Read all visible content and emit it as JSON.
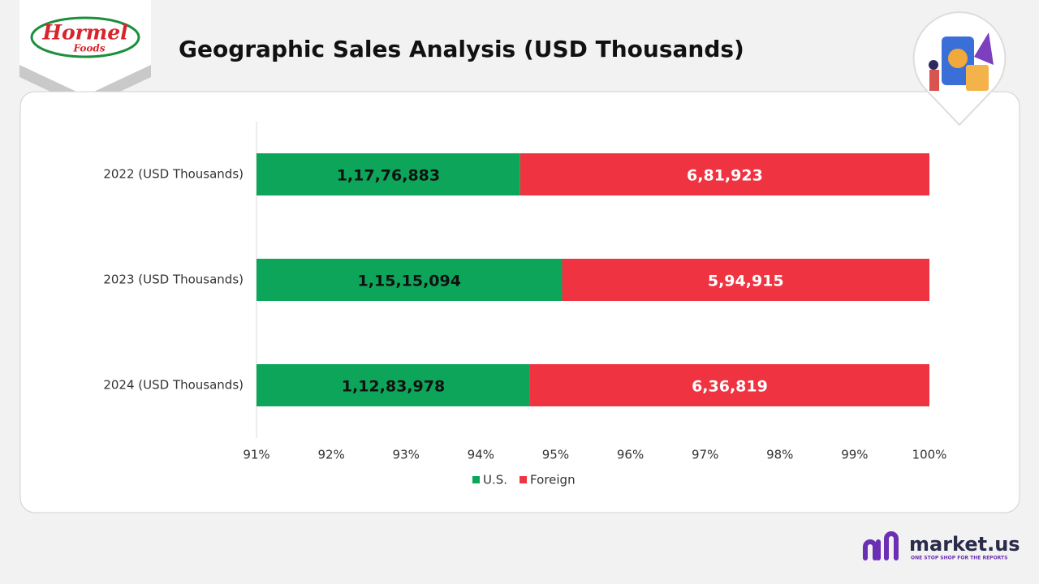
{
  "header": {
    "logo_top": "Hormel",
    "logo_bottom": "Foods"
  },
  "chart_data": {
    "type": "stacked-bar-100",
    "title": "Geographic Sales Analysis (USD Thousands)",
    "categories": [
      "2022 (USD Thousands)",
      "2023 (USD Thousands)",
      "2024 (USD Thousands)"
    ],
    "series": [
      {
        "name": "U.S.",
        "color": "#0ca55a",
        "label_color": "#111111",
        "values": [
          11776883,
          11515094,
          11283978
        ],
        "value_labels": [
          "1,17,76,883",
          "1,15,15,094",
          "1,12,83,978"
        ]
      },
      {
        "name": "Foreign",
        "color": "#ef3340",
        "label_color": "#ffffff",
        "values": [
          681923,
          594915,
          636819
        ],
        "value_labels": [
          "6,81,923",
          "5,94,915",
          "6,36,819"
        ]
      }
    ],
    "xlim": [
      91,
      100
    ],
    "xticks": [
      {
        "value": 91,
        "label": "91%"
      },
      {
        "value": 92,
        "label": "92%"
      },
      {
        "value": 93,
        "label": "93%"
      },
      {
        "value": 94,
        "label": "94%"
      },
      {
        "value": 95,
        "label": "95%"
      },
      {
        "value": 96,
        "label": "96%"
      },
      {
        "value": 97,
        "label": "97%"
      },
      {
        "value": 98,
        "label": "98%"
      },
      {
        "value": 99,
        "label": "99%"
      },
      {
        "value": 100,
        "label": "100%"
      }
    ],
    "legend": "bottom"
  },
  "footer": {
    "brand": "market.us",
    "tagline": "ONE STOP SHOP FOR THE REPORTS"
  }
}
